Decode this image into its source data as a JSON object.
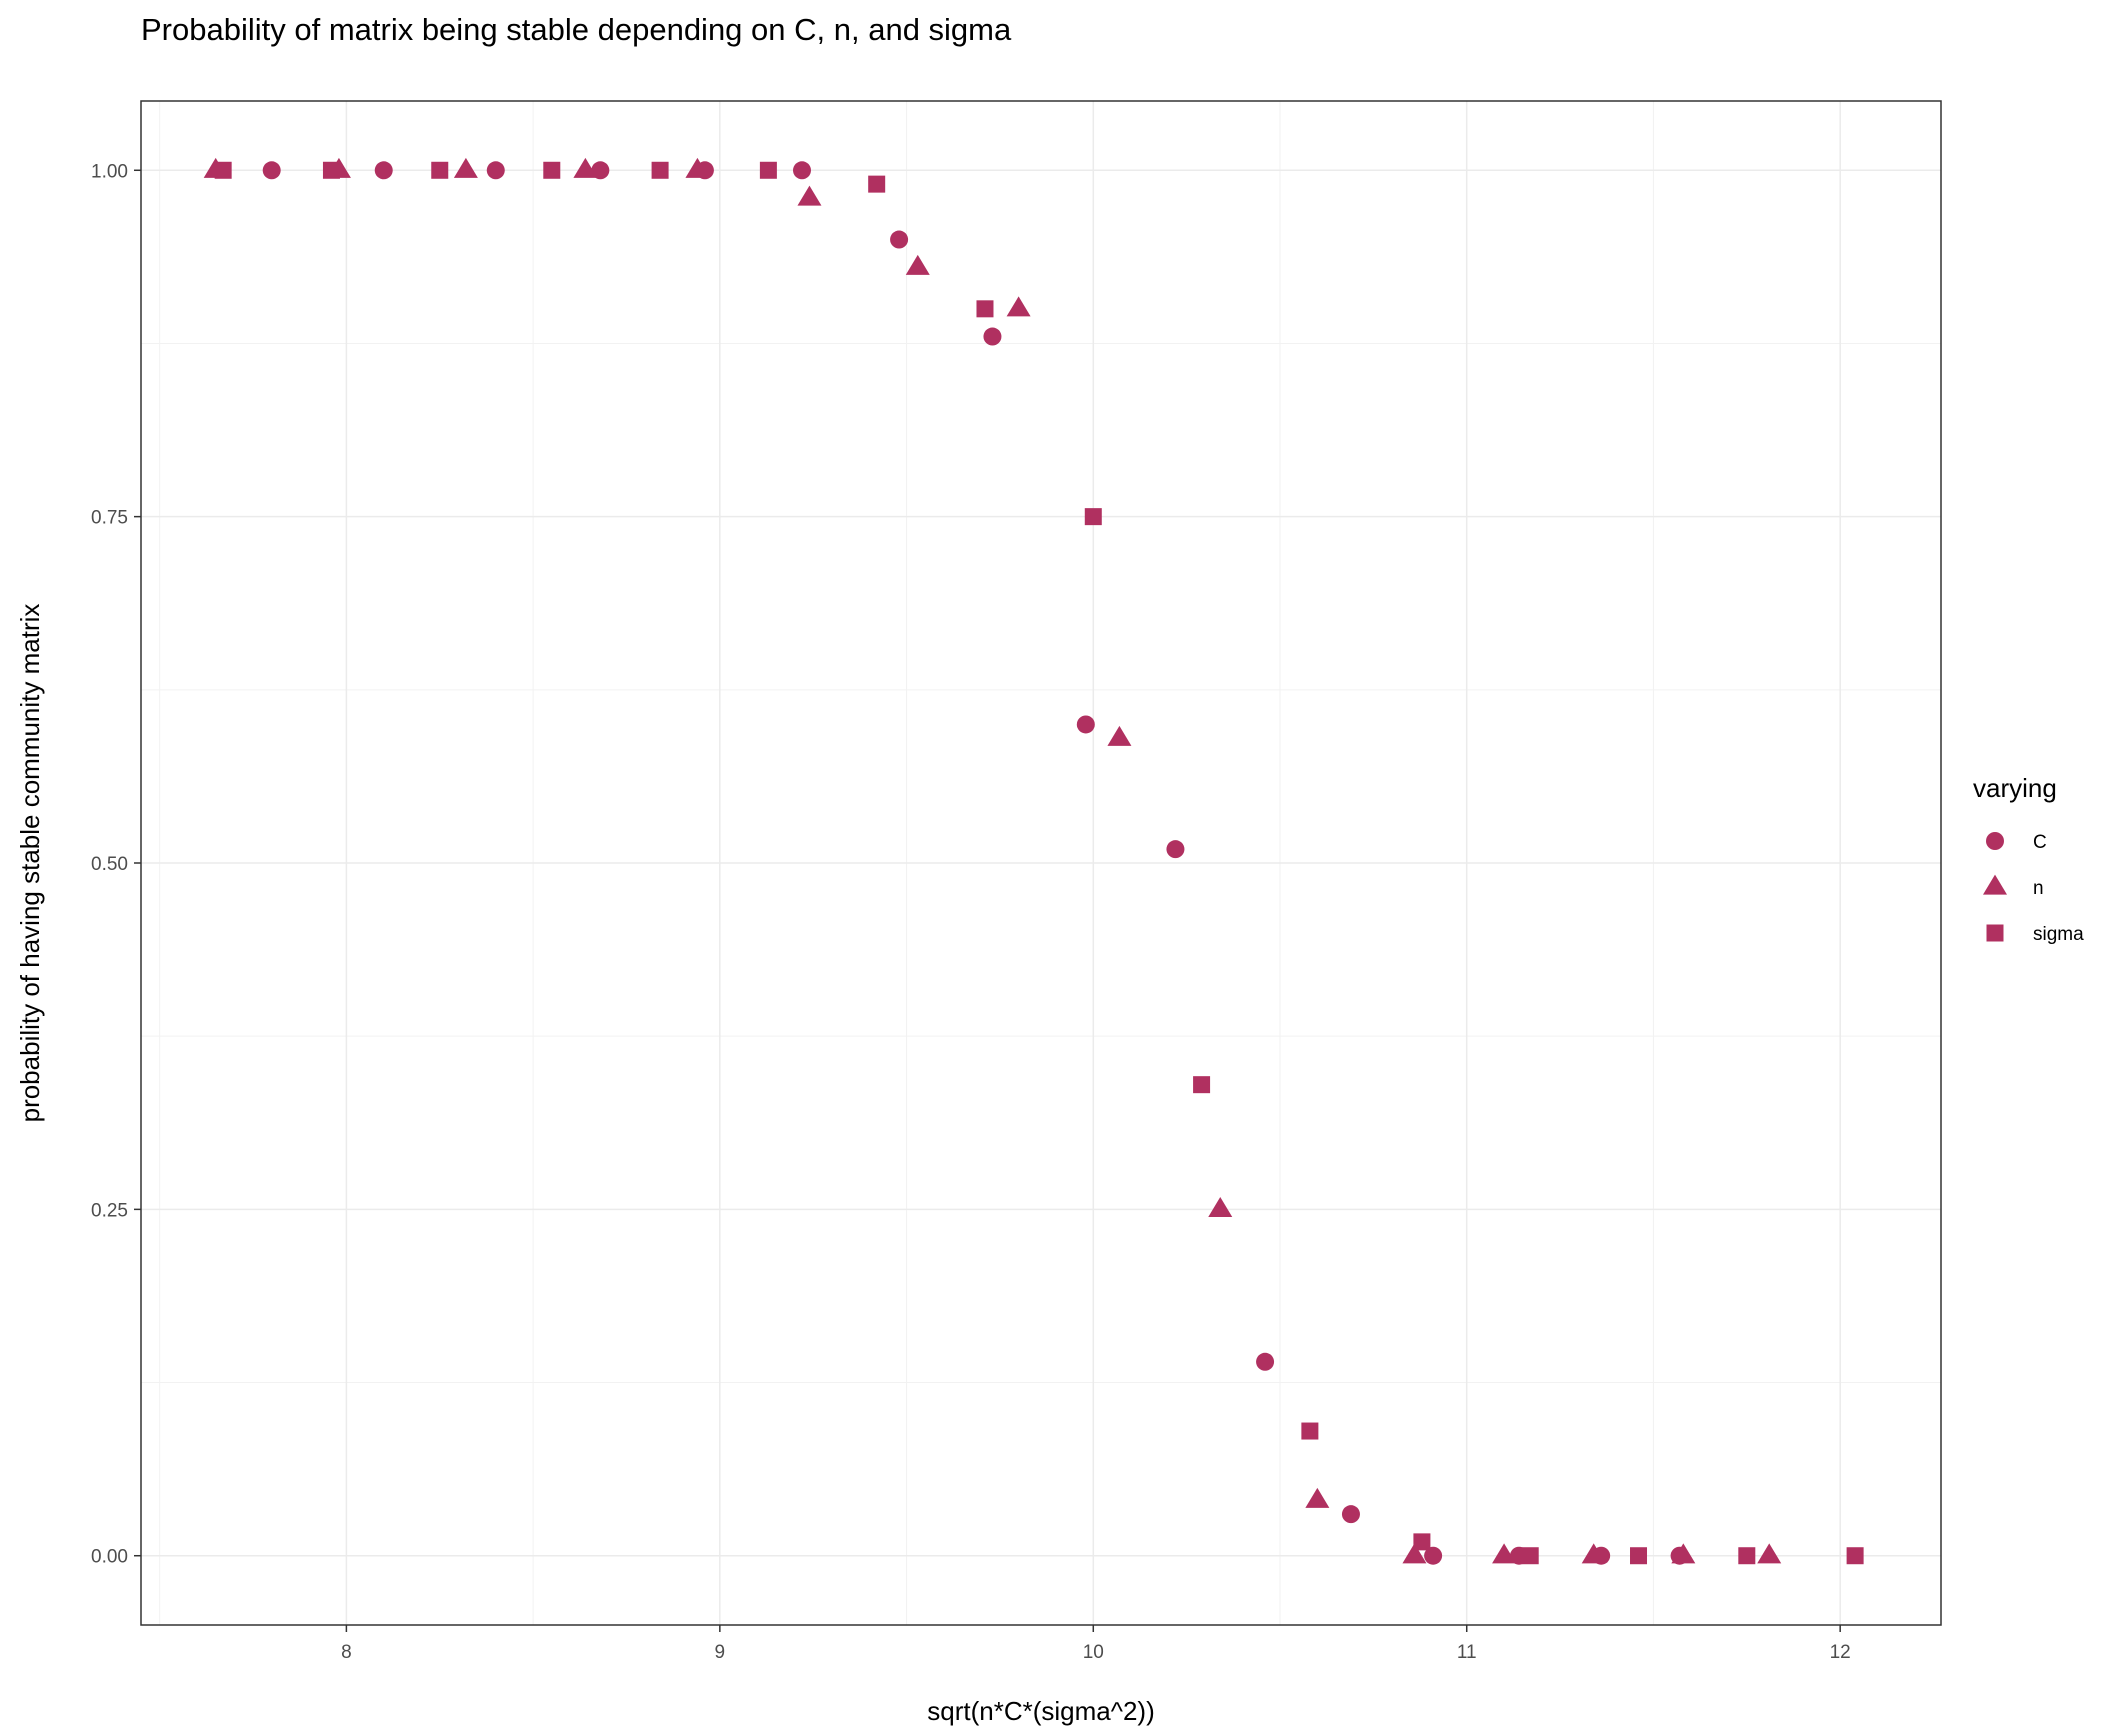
{
  "chart_data": {
    "type": "scatter",
    "title": "Probability of matrix being stable depending on C, n, and sigma",
    "xlabel": "sqrt(n*C*(sigma^2))",
    "ylabel": "probability of having stable community matrix",
    "xlim": [
      7.45,
      12.27
    ],
    "ylim": [
      -0.05,
      1.05
    ],
    "x_ticks": [
      8,
      9,
      10,
      11,
      12
    ],
    "x_tick_labels": [
      "8",
      "9",
      "10",
      "11",
      "12"
    ],
    "y_ticks": [
      0,
      0.25,
      0.5,
      0.75,
      1
    ],
    "y_tick_labels": [
      "0.00",
      "0.25",
      "0.50",
      "0.75",
      "1.00"
    ],
    "grid": true,
    "legend_position": "right",
    "legend_title": "varying",
    "point_color": "#b03060",
    "series": [
      {
        "name": "C",
        "shape": "circle",
        "points": [
          [
            7.8,
            1.0
          ],
          [
            8.1,
            1.0
          ],
          [
            8.4,
            1.0
          ],
          [
            8.68,
            1.0
          ],
          [
            8.96,
            1.0
          ],
          [
            9.22,
            1.0
          ],
          [
            9.48,
            0.95
          ],
          [
            9.73,
            0.88
          ],
          [
            9.98,
            0.6
          ],
          [
            10.22,
            0.51
          ],
          [
            10.46,
            0.14
          ],
          [
            10.69,
            0.03
          ],
          [
            10.91,
            0.0
          ],
          [
            11.14,
            0.0
          ],
          [
            11.36,
            0.0
          ],
          [
            11.57,
            0.0
          ]
        ]
      },
      {
        "name": "n",
        "shape": "triangle",
        "points": [
          [
            7.65,
            1.0
          ],
          [
            7.98,
            1.0
          ],
          [
            8.32,
            1.0
          ],
          [
            8.64,
            1.0
          ],
          [
            8.94,
            1.0
          ],
          [
            9.24,
            0.98
          ],
          [
            9.53,
            0.93
          ],
          [
            9.8,
            0.9
          ],
          [
            10.07,
            0.59
          ],
          [
            10.34,
            0.25
          ],
          [
            10.6,
            0.04
          ],
          [
            10.86,
            0.0
          ],
          [
            11.1,
            0.0
          ],
          [
            11.34,
            0.0
          ],
          [
            11.58,
            0.0
          ],
          [
            11.81,
            0.0
          ]
        ]
      },
      {
        "name": "sigma",
        "shape": "square",
        "points": [
          [
            7.67,
            1.0
          ],
          [
            7.96,
            1.0
          ],
          [
            8.25,
            1.0
          ],
          [
            8.55,
            1.0
          ],
          [
            8.84,
            1.0
          ],
          [
            9.13,
            1.0
          ],
          [
            9.42,
            0.99
          ],
          [
            9.71,
            0.9
          ],
          [
            10.0,
            0.75
          ],
          [
            10.29,
            0.34
          ],
          [
            10.58,
            0.09
          ],
          [
            10.88,
            0.01
          ],
          [
            11.17,
            0.0
          ],
          [
            11.46,
            0.0
          ],
          [
            11.75,
            0.0
          ],
          [
            12.04,
            0.0
          ]
        ]
      }
    ]
  }
}
